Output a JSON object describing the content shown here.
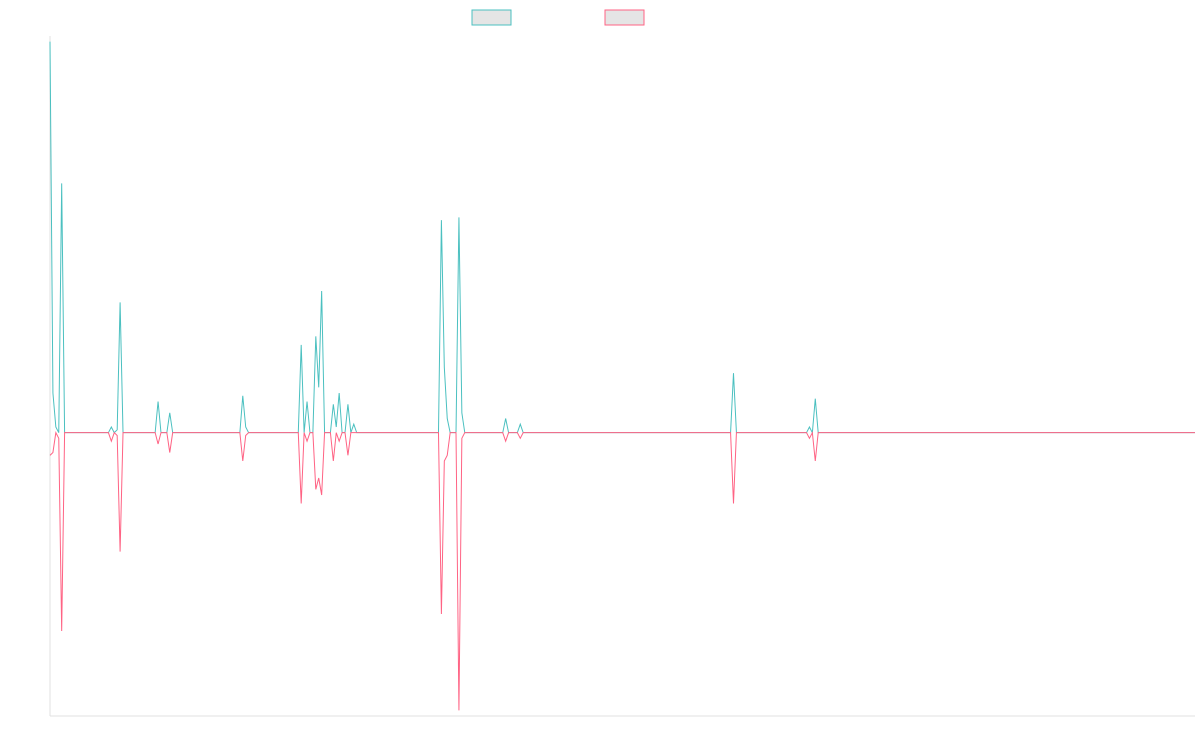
{
  "chart_data": {
    "type": "line",
    "title": "",
    "xlabel": "",
    "ylabel": "",
    "grid": false,
    "legend_position": "top",
    "ylim": [
      -1.0,
      1.4
    ],
    "x_count": 393,
    "series": [
      {
        "color": "#4bc0c0",
        "points": [
          [
            0,
            1.38
          ],
          [
            1,
            0.14
          ],
          [
            2,
            0.02
          ],
          [
            3,
            0.0
          ],
          [
            4,
            0.88
          ],
          [
            5,
            0.0
          ],
          [
            20,
            0.0
          ],
          [
            21,
            0.02
          ],
          [
            22,
            0.0
          ],
          [
            23,
            0.01
          ],
          [
            24,
            0.46
          ],
          [
            25,
            0.0
          ],
          [
            36,
            0.0
          ],
          [
            37,
            0.11
          ],
          [
            38,
            0.0
          ],
          [
            40,
            0.0
          ],
          [
            41,
            0.07
          ],
          [
            42,
            0.0
          ],
          [
            44,
            0.0
          ],
          [
            45,
            0.0
          ],
          [
            46,
            0.0
          ],
          [
            65,
            0.0
          ],
          [
            66,
            0.13
          ],
          [
            67,
            0.02
          ],
          [
            68,
            0.0
          ],
          [
            85,
            0.0
          ],
          [
            86,
            0.31
          ],
          [
            87,
            0.0
          ],
          [
            88,
            0.11
          ],
          [
            89,
            0.0
          ],
          [
            90,
            0.0
          ],
          [
            91,
            0.34
          ],
          [
            92,
            0.16
          ],
          [
            93,
            0.5
          ],
          [
            94,
            0.0
          ],
          [
            96,
            0.0
          ],
          [
            97,
            0.1
          ],
          [
            98,
            0.02
          ],
          [
            99,
            0.14
          ],
          [
            100,
            0.0
          ],
          [
            101,
            0.0
          ],
          [
            102,
            0.1
          ],
          [
            103,
            0.0
          ],
          [
            104,
            0.03
          ],
          [
            105,
            0.0
          ],
          [
            106,
            0.0
          ],
          [
            133,
            0.0
          ],
          [
            134,
            0.75
          ],
          [
            135,
            0.23
          ],
          [
            136,
            0.05
          ],
          [
            137,
            0.0
          ],
          [
            139,
            0.0
          ],
          [
            140,
            0.76
          ],
          [
            141,
            0.07
          ],
          [
            142,
            0.0
          ],
          [
            155,
            0.0
          ],
          [
            156,
            0.05
          ],
          [
            157,
            0.0
          ],
          [
            158,
            0.0
          ],
          [
            159,
            0.0
          ],
          [
            160,
            0.0
          ],
          [
            161,
            0.03
          ],
          [
            162,
            0.0
          ],
          [
            233,
            0.0
          ],
          [
            234,
            0.21
          ],
          [
            235,
            0.0
          ],
          [
            259,
            0.0
          ],
          [
            260,
            0.02
          ],
          [
            261,
            0.0
          ],
          [
            262,
            0.12
          ],
          [
            263,
            0.0
          ],
          [
            392,
            0.0
          ]
        ]
      },
      {
        "color": "#ff6384",
        "points": [
          [
            0,
            -0.08
          ],
          [
            1,
            -0.07
          ],
          [
            2,
            0.0
          ],
          [
            3,
            -0.02
          ],
          [
            4,
            -0.7
          ],
          [
            5,
            0.0
          ],
          [
            20,
            0.0
          ],
          [
            21,
            -0.03
          ],
          [
            22,
            0.0
          ],
          [
            23,
            -0.01
          ],
          [
            24,
            -0.42
          ],
          [
            25,
            0.0
          ],
          [
            36,
            0.0
          ],
          [
            37,
            -0.04
          ],
          [
            38,
            0.0
          ],
          [
            40,
            0.0
          ],
          [
            41,
            -0.07
          ],
          [
            42,
            0.0
          ],
          [
            44,
            0.0
          ],
          [
            45,
            0.0
          ],
          [
            46,
            0.0
          ],
          [
            65,
            0.0
          ],
          [
            66,
            -0.1
          ],
          [
            67,
            -0.01
          ],
          [
            68,
            0.0
          ],
          [
            85,
            0.0
          ],
          [
            86,
            -0.25
          ],
          [
            87,
            0.0
          ],
          [
            88,
            -0.03
          ],
          [
            89,
            0.0
          ],
          [
            90,
            0.0
          ],
          [
            91,
            -0.2
          ],
          [
            92,
            -0.16
          ],
          [
            93,
            -0.22
          ],
          [
            94,
            0.0
          ],
          [
            96,
            0.0
          ],
          [
            97,
            -0.1
          ],
          [
            98,
            0.0
          ],
          [
            99,
            -0.03
          ],
          [
            100,
            0.0
          ],
          [
            101,
            0.0
          ],
          [
            102,
            -0.08
          ],
          [
            103,
            0.0
          ],
          [
            104,
            0.0
          ],
          [
            105,
            0.0
          ],
          [
            106,
            0.0
          ],
          [
            133,
            0.0
          ],
          [
            134,
            -0.64
          ],
          [
            135,
            -0.1
          ],
          [
            136,
            -0.08
          ],
          [
            137,
            0.0
          ],
          [
            139,
            0.0
          ],
          [
            140,
            -0.98
          ],
          [
            141,
            -0.02
          ],
          [
            142,
            0.0
          ],
          [
            155,
            0.0
          ],
          [
            156,
            -0.03
          ],
          [
            157,
            0.0
          ],
          [
            158,
            0.0
          ],
          [
            159,
            0.0
          ],
          [
            160,
            0.0
          ],
          [
            161,
            -0.02
          ],
          [
            162,
            0.0
          ],
          [
            233,
            0.0
          ],
          [
            234,
            -0.25
          ],
          [
            235,
            0.0
          ],
          [
            259,
            0.0
          ],
          [
            260,
            -0.02
          ],
          [
            261,
            0.0
          ],
          [
            262,
            -0.1
          ],
          [
            263,
            0.0
          ],
          [
            392,
            0.0
          ]
        ]
      }
    ]
  },
  "legend": {
    "swatch_fill": "#e5e5e5",
    "axis_color": "#e0e0e0"
  }
}
